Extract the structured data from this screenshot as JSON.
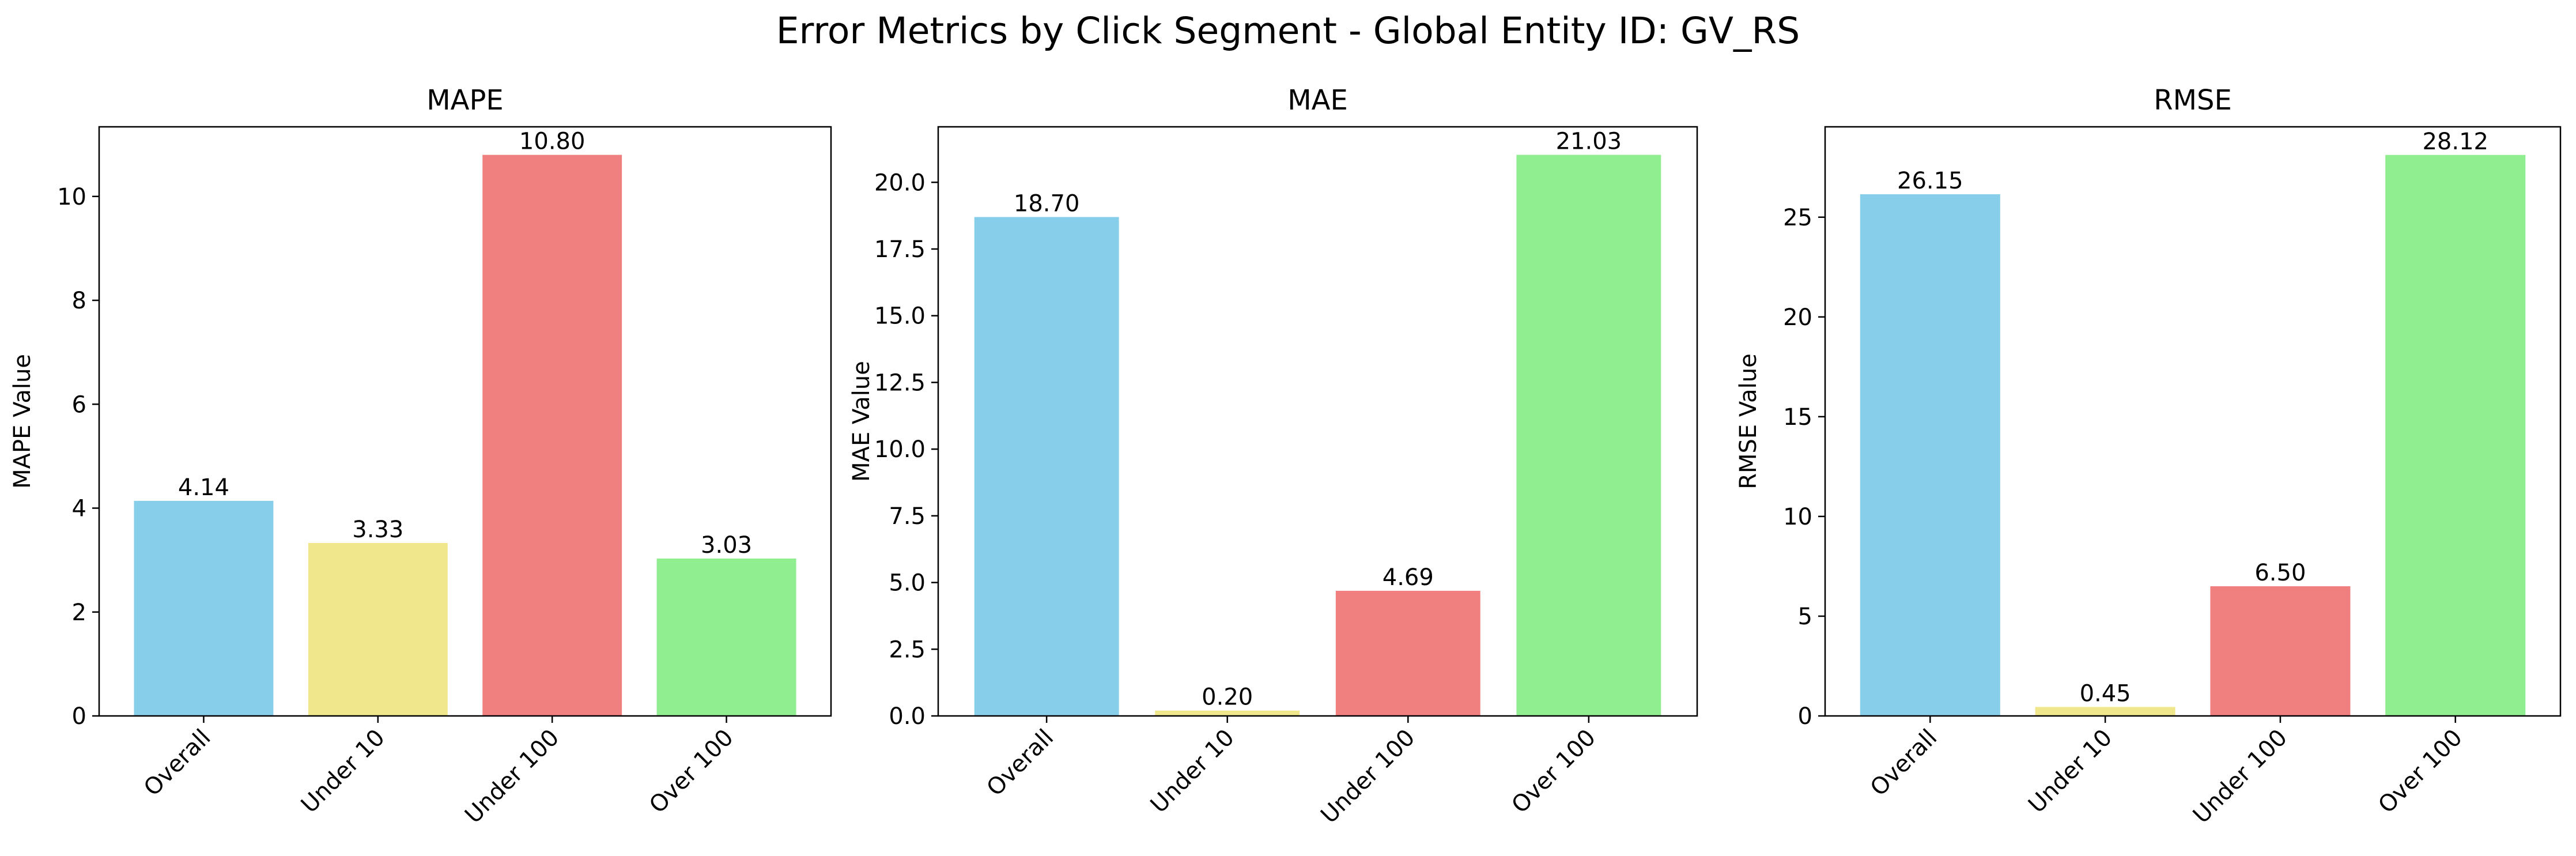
{
  "title": "Error Metrics by Click Segment - Global Entity ID: GV_RS",
  "colors": [
    "#87ceeb",
    "#f0e68c",
    "#f08080",
    "#90ee90"
  ],
  "chart_data": [
    {
      "type": "bar",
      "title": "MAPE",
      "ylabel": "MAPE Value",
      "xlabel": "",
      "categories": [
        "Overall",
        "Under 10",
        "Under 100",
        "Over 100"
      ],
      "values": [
        4.14,
        3.33,
        10.8,
        3.03
      ],
      "value_labels": [
        "4.14",
        "3.33",
        "10.80",
        "3.03"
      ],
      "ylim": [
        0,
        11.34
      ],
      "yticks": [
        0,
        2,
        4,
        6,
        8,
        10
      ],
      "ytick_labels": [
        "0",
        "2",
        "4",
        "6",
        "8",
        "10"
      ],
      "grid": false,
      "legend": "none"
    },
    {
      "type": "bar",
      "title": "MAE",
      "ylabel": "MAE Value",
      "xlabel": "",
      "categories": [
        "Overall",
        "Under 10",
        "Under 100",
        "Over 100"
      ],
      "values": [
        18.7,
        0.2,
        4.69,
        21.03
      ],
      "value_labels": [
        "18.70",
        "0.20",
        "4.69",
        "21.03"
      ],
      "ylim": [
        0,
        22.08
      ],
      "yticks": [
        0,
        2.5,
        5,
        7.5,
        10,
        12.5,
        15,
        17.5,
        20
      ],
      "ytick_labels": [
        "0.0",
        "2.5",
        "5.0",
        "7.5",
        "10.0",
        "12.5",
        "15.0",
        "17.5",
        "20.0"
      ],
      "grid": false,
      "legend": "none"
    },
    {
      "type": "bar",
      "title": "RMSE",
      "ylabel": "RMSE Value",
      "xlabel": "",
      "categories": [
        "Overall",
        "Under 10",
        "Under 100",
        "Over 100"
      ],
      "values": [
        26.15,
        0.45,
        6.5,
        28.12
      ],
      "value_labels": [
        "26.15",
        "0.45",
        "6.50",
        "28.12"
      ],
      "ylim": [
        0,
        29.53
      ],
      "yticks": [
        0,
        5,
        10,
        15,
        20,
        25
      ],
      "ytick_labels": [
        "0",
        "5",
        "10",
        "15",
        "20",
        "25"
      ],
      "grid": false,
      "legend": "none"
    }
  ]
}
